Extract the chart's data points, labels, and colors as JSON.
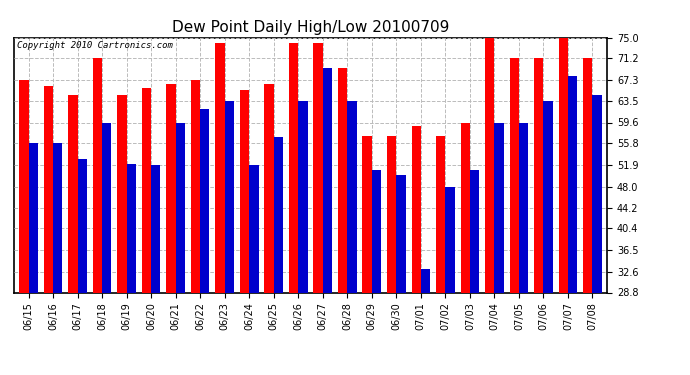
{
  "title": "Dew Point Daily High/Low 20100709",
  "copyright": "Copyright 2010 Cartronics.com",
  "dates": [
    "06/15",
    "06/16",
    "06/17",
    "06/18",
    "06/19",
    "06/20",
    "06/21",
    "06/22",
    "06/23",
    "06/24",
    "06/25",
    "06/26",
    "06/27",
    "06/28",
    "06/29",
    "06/30",
    "07/01",
    "07/02",
    "07/03",
    "07/04",
    "07/05",
    "07/06",
    "07/07",
    "07/08"
  ],
  "highs": [
    67.3,
    66.2,
    64.5,
    71.2,
    64.5,
    65.8,
    66.5,
    67.3,
    74.0,
    65.5,
    66.5,
    74.0,
    74.0,
    69.4,
    57.2,
    57.2,
    59.0,
    57.2,
    59.6,
    75.0,
    71.2,
    71.2,
    75.0,
    71.2
  ],
  "lows": [
    55.8,
    55.8,
    53.0,
    59.6,
    52.0,
    51.9,
    59.6,
    62.0,
    63.5,
    51.9,
    57.0,
    63.5,
    69.4,
    63.5,
    51.0,
    50.0,
    33.0,
    48.0,
    51.0,
    59.6,
    59.6,
    63.5,
    68.0,
    64.5
  ],
  "high_color": "#ff0000",
  "low_color": "#0000cc",
  "background_color": "#ffffff",
  "plot_background": "#ffffff",
  "grid_color": "#bbbbbb",
  "ylim_min": 28.8,
  "ylim_max": 75.0,
  "yticks": [
    28.8,
    32.6,
    36.5,
    40.4,
    44.2,
    48.0,
    51.9,
    55.8,
    59.6,
    63.5,
    67.3,
    71.2,
    75.0
  ],
  "bar_width": 0.38,
  "title_fontsize": 11,
  "tick_fontsize": 7,
  "copyright_fontsize": 6.5
}
